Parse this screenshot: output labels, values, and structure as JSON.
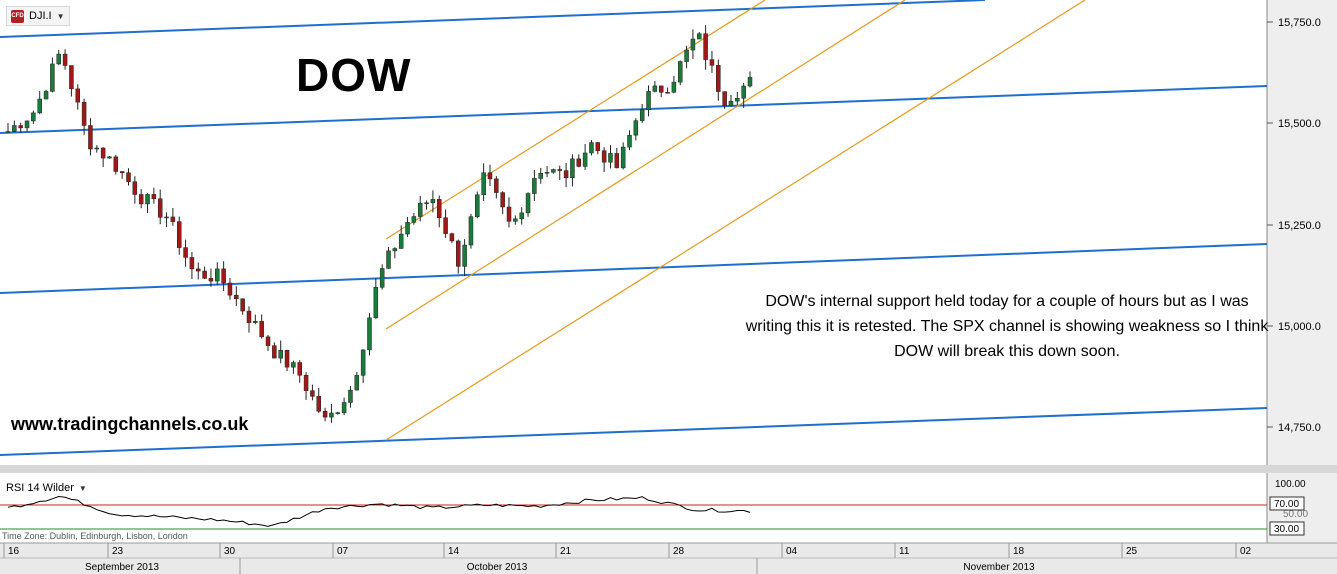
{
  "header": {
    "symbol": "DJI.I",
    "symbol_icon": "cfd-icon"
  },
  "title": "DOW",
  "website": "www.tradingchannels.co.uk",
  "note": "DOW's internal support held today for a couple of hours but as I was writing this it is retested. The SPX channel is showing weakness so I think DOW will break this down soon.",
  "indicator": {
    "label": "RSI 14 Wilder",
    "upper_level": "70.00",
    "lower_level": "30.00",
    "axis_max": "100.00",
    "axis_mid": "50.00"
  },
  "timezone": "Time Zone: Dublin, Edinburgh, Lisbon, London",
  "colors": {
    "up": "#1a7a3a",
    "down": "#a01818",
    "support_lines": "#1f6fcf",
    "channel_lines": "#e39a1d",
    "rsi_line": "#000000",
    "rsi_upper": "#cc2222",
    "rsi_lower": "#2a8a2a"
  },
  "chart_data": {
    "type": "candlestick",
    "y_ticks": [
      "15,750.0",
      "15,500.0",
      "15,250.0",
      "15,000.0",
      "14,750.0"
    ],
    "ylim": [
      14660,
      15830
    ],
    "x_ticks": [
      "16",
      "23",
      "30",
      "07",
      "14",
      "21",
      "28",
      "04",
      "11",
      "18",
      "25",
      "02"
    ],
    "months": [
      "September 2013",
      "October 2013",
      "November 2013"
    ],
    "approx_series": [
      {
        "name": "DJI.I",
        "points": [
          [
            "Sep 16",
            15480
          ],
          [
            "Sep 18",
            15530
          ],
          [
            "Sep 19",
            15680
          ],
          [
            "Sep 20",
            15460
          ],
          [
            "Sep 23",
            15400
          ],
          [
            "Sep 25",
            15320
          ],
          [
            "Sep 27",
            15270
          ],
          [
            "Sep 30",
            15130
          ],
          [
            "Oct 02",
            15120
          ],
          [
            "Oct 04",
            15030
          ],
          [
            "Oct 07",
            14940
          ],
          [
            "Oct 08",
            14880
          ],
          [
            "Oct 09",
            14760
          ],
          [
            "Oct 10",
            14850
          ],
          [
            "Oct 11",
            15120
          ],
          [
            "Oct 14",
            15250
          ],
          [
            "Oct 15",
            15320
          ],
          [
            "Oct 16",
            15160
          ],
          [
            "Oct 17",
            15370
          ],
          [
            "Oct 18",
            15240
          ],
          [
            "Oct 21",
            15390
          ],
          [
            "Oct 23",
            15370
          ],
          [
            "Oct 24",
            15450
          ],
          [
            "Oct 25",
            15390
          ],
          [
            "Oct 28",
            15560
          ],
          [
            "Oct 29",
            15600
          ],
          [
            "Oct 30",
            15720
          ],
          [
            "Oct 31",
            15560
          ],
          [
            "Nov 01",
            15600
          ]
        ]
      },
      {
        "name": "RSI 14 Wilder",
        "points": [
          [
            "Sep 16",
            55
          ],
          [
            "Sep 19",
            75
          ],
          [
            "Sep 23",
            45
          ],
          [
            "Sep 30",
            40
          ],
          [
            "Oct 07",
            35
          ],
          [
            "Oct 09",
            25
          ],
          [
            "Oct 11",
            55
          ],
          [
            "Oct 14",
            62
          ],
          [
            "Oct 18",
            55
          ],
          [
            "Oct 21",
            60
          ],
          [
            "Oct 25",
            58
          ],
          [
            "Oct 28",
            68
          ],
          [
            "Oct 30",
            72
          ],
          [
            "Oct 31",
            52
          ],
          [
            "Nov 01",
            50
          ]
        ]
      }
    ]
  }
}
